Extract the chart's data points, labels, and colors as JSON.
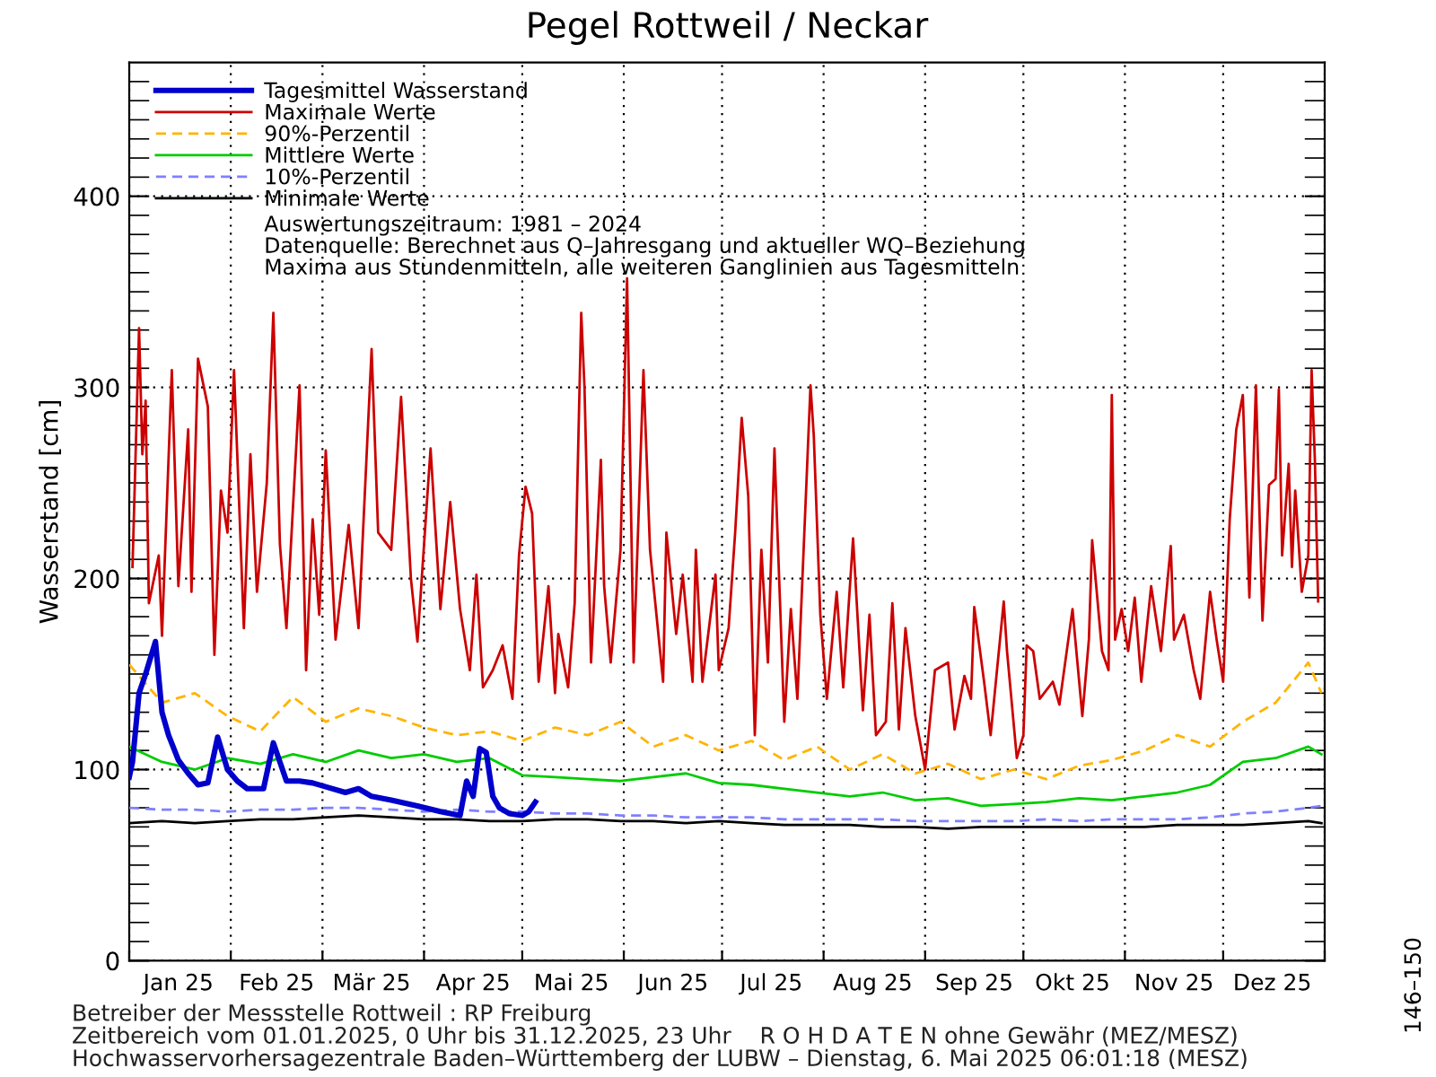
{
  "chart_data": {
    "type": "line",
    "title": "Pegel Rottweil / Neckar",
    "ylabel": "Wasserstand [cm]",
    "xlim": [
      "2025-01-01",
      "2026-01-01"
    ],
    "xticks": [
      {
        "value": "2025-01-01",
        "label": null
      },
      {
        "value": "2025-01-16",
        "label": "Jan 25"
      },
      {
        "value": "2025-02-01",
        "label": null
      },
      {
        "value": "2025-02-15",
        "label": "Feb 25"
      },
      {
        "value": "2025-03-01",
        "label": null
      },
      {
        "value": "2025-03-16",
        "label": "Mär 25"
      },
      {
        "value": "2025-04-01",
        "label": null
      },
      {
        "value": "2025-04-16",
        "label": "Apr 25"
      },
      {
        "value": "2025-05-01",
        "label": null
      },
      {
        "value": "2025-05-16",
        "label": "Mai 25"
      },
      {
        "value": "2025-06-01",
        "label": null
      },
      {
        "value": "2025-06-16",
        "label": "Jun 25"
      },
      {
        "value": "2025-07-01",
        "label": null
      },
      {
        "value": "2025-07-16",
        "label": "Jul 25"
      },
      {
        "value": "2025-08-01",
        "label": null
      },
      {
        "value": "2025-08-16",
        "label": "Aug 25"
      },
      {
        "value": "2025-09-01",
        "label": null
      },
      {
        "value": "2025-09-16",
        "label": "Sep 25"
      },
      {
        "value": "2025-10-01",
        "label": null
      },
      {
        "value": "2025-10-16",
        "label": "Okt 25"
      },
      {
        "value": "2025-11-01",
        "label": null
      },
      {
        "value": "2025-11-16",
        "label": "Nov 25"
      },
      {
        "value": "2025-12-01",
        "label": null
      },
      {
        "value": "2025-12-16",
        "label": "Dez 25"
      },
      {
        "value": "2026-01-01",
        "label": null
      }
    ],
    "ylim": [
      0,
      470
    ],
    "yticks": [
      0,
      {
        "value": 10,
        "label": null
      },
      {
        "value": 20,
        "label": null
      },
      {
        "value": 30,
        "label": null
      },
      {
        "value": 40,
        "label": null
      },
      {
        "value": 50,
        "label": null
      },
      {
        "value": 60,
        "label": null
      },
      {
        "value": 70,
        "label": null
      },
      {
        "value": 80,
        "label": null
      },
      {
        "value": 90,
        "label": null
      },
      100,
      {
        "value": 110,
        "label": null
      },
      {
        "value": 120,
        "label": null
      },
      {
        "value": 130,
        "label": null
      },
      {
        "value": 140,
        "label": null
      },
      {
        "value": 150,
        "label": null
      },
      {
        "value": 160,
        "label": null
      },
      {
        "value": 170,
        "label": null
      },
      {
        "value": 180,
        "label": null
      },
      {
        "value": 190,
        "label": null
      },
      200,
      {
        "value": 210,
        "label": null
      },
      {
        "value": 220,
        "label": null
      },
      {
        "value": 230,
        "label": null
      },
      {
        "value": 240,
        "label": null
      },
      {
        "value": 250,
        "label": null
      },
      {
        "value": 260,
        "label": null
      },
      {
        "value": 270,
        "label": null
      },
      {
        "value": 280,
        "label": null
      },
      {
        "value": 290,
        "label": null
      },
      300,
      {
        "value": 310,
        "label": null
      },
      {
        "value": 320,
        "label": null
      },
      {
        "value": 330,
        "label": null
      },
      {
        "value": 340,
        "label": null
      },
      {
        "value": 350,
        "label": null
      },
      {
        "value": 360,
        "label": null
      },
      {
        "value": 370,
        "label": null
      },
      {
        "value": 380,
        "label": null
      },
      {
        "value": 390,
        "label": null
      },
      400,
      {
        "value": 410,
        "label": null
      },
      {
        "value": 420,
        "label": null
      },
      {
        "value": 430,
        "label": null
      },
      {
        "value": 440,
        "label": null
      },
      {
        "value": 450,
        "label": null
      },
      {
        "value": 460,
        "label": null
      }
    ],
    "grid": true,
    "legend": "top left",
    "marker": "none",
    "series": [
      {
        "name": "Tagesmittel Wasserstand",
        "color": "#0000cc",
        "line_style": "solid",
        "x": [
          "2025-01-01",
          "2025-01-02",
          "2025-01-04",
          "2025-01-06",
          "2025-01-09",
          "2025-01-11",
          "2025-01-13",
          "2025-01-16",
          "2025-01-19",
          "2025-01-22",
          "2025-01-25",
          "2025-01-28",
          "2025-01-31",
          "2025-02-03",
          "2025-02-06",
          "2025-02-11",
          "2025-02-14",
          "2025-02-18",
          "2025-02-22",
          "2025-02-26",
          "2025-03-02",
          "2025-03-08",
          "2025-03-12",
          "2025-03-16",
          "2025-03-22",
          "2025-03-30",
          "2025-04-06",
          "2025-04-12",
          "2025-04-14",
          "2025-04-16",
          "2025-04-18",
          "2025-04-20",
          "2025-04-22",
          "2025-04-24",
          "2025-04-27",
          "2025-05-01",
          "2025-05-03",
          "2025-05-05"
        ],
        "values": [
          96,
          104,
          140,
          150,
          167,
          130,
          118,
          105,
          98,
          92,
          93,
          117,
          100,
          94,
          90,
          90,
          114,
          94,
          94,
          93,
          91,
          88,
          90,
          86,
          84,
          81,
          78,
          76,
          94,
          86,
          111,
          109,
          86,
          80,
          77,
          76,
          78,
          83
        ]
      },
      {
        "name": "Maximale Werte",
        "color": "#cc0000",
        "line_style": "solid",
        "x": [
          "2025-01-02",
          "2025-01-04",
          "2025-01-05",
          "2025-01-06",
          "2025-01-07",
          "2025-01-10",
          "2025-01-11",
          "2025-01-14",
          "2025-01-16",
          "2025-01-19",
          "2025-01-20",
          "2025-01-22",
          "2025-01-25",
          "2025-01-27",
          "2025-01-29",
          "2025-01-31",
          "2025-02-02",
          "2025-02-05",
          "2025-02-07",
          "2025-02-09",
          "2025-02-12",
          "2025-02-14",
          "2025-02-16",
          "2025-02-18",
          "2025-02-22",
          "2025-02-24",
          "2025-02-26",
          "2025-02-28",
          "2025-03-02",
          "2025-03-05",
          "2025-03-09",
          "2025-03-12",
          "2025-03-16",
          "2025-03-18",
          "2025-03-22",
          "2025-03-25",
          "2025-03-28",
          "2025-03-30",
          "2025-04-03",
          "2025-04-06",
          "2025-04-09",
          "2025-04-12",
          "2025-04-15",
          "2025-04-17",
          "2025-04-19",
          "2025-04-22",
          "2025-04-25",
          "2025-04-28",
          "2025-04-30",
          "2025-05-02",
          "2025-05-04",
          "2025-05-06",
          "2025-05-09",
          "2025-05-11",
          "2025-05-12",
          "2025-05-15",
          "2025-05-17",
          "2025-05-19",
          "2025-05-20",
          "2025-05-22",
          "2025-05-25",
          "2025-05-26",
          "2025-05-28",
          "2025-05-31",
          "2025-06-02",
          "2025-06-04",
          "2025-06-07",
          "2025-06-09",
          "2025-06-13",
          "2025-06-14",
          "2025-06-17",
          "2025-06-19",
          "2025-06-22",
          "2025-06-23",
          "2025-06-25",
          "2025-06-29",
          "2025-06-30",
          "2025-07-03",
          "2025-07-05",
          "2025-07-07",
          "2025-07-09",
          "2025-07-11",
          "2025-07-13",
          "2025-07-15",
          "2025-07-17",
          "2025-07-20",
          "2025-07-22",
          "2025-07-24",
          "2025-07-28",
          "2025-07-29",
          "2025-07-31",
          "2025-08-02",
          "2025-08-05",
          "2025-08-07",
          "2025-08-10",
          "2025-08-13",
          "2025-08-15",
          "2025-08-17",
          "2025-08-20",
          "2025-08-22",
          "2025-08-24",
          "2025-08-26",
          "2025-08-29",
          "2025-09-01",
          "2025-09-04",
          "2025-09-08",
          "2025-09-10",
          "2025-09-13",
          "2025-09-15",
          "2025-09-16",
          "2025-09-19",
          "2025-09-21",
          "2025-09-25",
          "2025-09-26",
          "2025-09-29",
          "2025-10-01",
          "2025-10-02",
          "2025-10-04",
          "2025-10-06",
          "2025-10-10",
          "2025-10-12",
          "2025-10-16",
          "2025-10-19",
          "2025-10-21",
          "2025-10-22",
          "2025-10-25",
          "2025-10-27",
          "2025-10-28",
          "2025-10-29",
          "2025-10-31",
          "2025-11-02",
          "2025-11-04",
          "2025-11-06",
          "2025-11-09",
          "2025-11-12",
          "2025-11-15",
          "2025-11-16",
          "2025-11-19",
          "2025-11-22",
          "2025-11-24",
          "2025-11-27",
          "2025-11-29",
          "2025-12-01",
          "2025-12-03",
          "2025-12-05",
          "2025-12-07",
          "2025-12-09",
          "2025-12-11",
          "2025-12-13",
          "2025-12-15",
          "2025-12-17",
          "2025-12-18",
          "2025-12-19",
          "2025-12-21",
          "2025-12-22",
          "2025-12-23",
          "2025-12-25",
          "2025-12-27",
          "2025-12-28",
          "2025-12-29",
          "2025-12-30"
        ],
        "values": [
          206,
          331,
          265,
          293,
          187,
          212,
          170,
          309,
          196,
          278,
          193,
          315,
          290,
          160,
          246,
          224,
          309,
          174,
          265,
          193,
          250,
          339,
          218,
          174,
          301,
          152,
          231,
          181,
          267,
          168,
          228,
          174,
          320,
          224,
          215,
          295,
          200,
          167,
          268,
          184,
          240,
          184,
          152,
          202,
          143,
          152,
          165,
          137,
          212,
          248,
          234,
          146,
          196,
          140,
          171,
          143,
          187,
          339,
          300,
          156,
          262,
          196,
          156,
          215,
          357,
          156,
          309,
          215,
          146,
          224,
          171,
          202,
          146,
          215,
          146,
          202,
          152,
          174,
          224,
          284,
          243,
          118,
          215,
          156,
          268,
          125,
          184,
          137,
          301,
          275,
          181,
          137,
          193,
          143,
          221,
          131,
          181,
          118,
          125,
          187,
          121,
          174,
          128,
          100,
          152,
          156,
          121,
          149,
          137,
          185,
          146,
          118,
          188,
          162,
          106,
          118,
          165,
          162,
          137,
          146,
          134,
          184,
          128,
          168,
          220,
          162,
          152,
          296,
          168,
          184,
          162,
          190,
          146,
          196,
          162,
          217,
          168,
          181,
          152,
          137,
          193,
          168,
          146,
          231,
          278,
          296,
          190,
          301,
          178,
          249,
          252,
          299,
          212,
          260,
          206,
          246,
          193,
          212,
          309,
          262,
          188
        ]
      },
      {
        "name": "90%-Perzentil",
        "color": "#ffb400",
        "line_style": "dashed",
        "x": [
          "2025-01-01",
          "2025-01-11",
          "2025-01-21",
          "2025-01-31",
          "2025-02-10",
          "2025-02-20",
          "2025-03-02",
          "2025-03-12",
          "2025-03-22",
          "2025-04-01",
          "2025-04-11",
          "2025-04-21",
          "2025-05-01",
          "2025-05-11",
          "2025-05-21",
          "2025-05-31",
          "2025-06-10",
          "2025-06-20",
          "2025-06-30",
          "2025-07-10",
          "2025-07-20",
          "2025-07-30",
          "2025-08-09",
          "2025-08-19",
          "2025-08-29",
          "2025-09-08",
          "2025-09-18",
          "2025-09-28",
          "2025-10-08",
          "2025-10-18",
          "2025-10-28",
          "2025-11-07",
          "2025-11-17",
          "2025-11-27",
          "2025-12-07",
          "2025-12-17",
          "2025-12-27",
          "2025-12-31"
        ],
        "values": [
          155,
          135,
          140,
          128,
          120,
          138,
          125,
          132,
          128,
          122,
          118,
          120,
          115,
          122,
          118,
          125,
          112,
          118,
          110,
          115,
          105,
          112,
          100,
          108,
          98,
          103,
          95,
          100,
          95,
          102,
          105,
          110,
          118,
          112,
          125,
          135,
          156,
          140
        ]
      },
      {
        "name": "Mittlere Werte",
        "color": "#00cc00",
        "line_style": "solid",
        "x": [
          "2025-01-01",
          "2025-01-11",
          "2025-01-21",
          "2025-01-31",
          "2025-02-10",
          "2025-02-20",
          "2025-03-02",
          "2025-03-12",
          "2025-03-22",
          "2025-04-01",
          "2025-04-11",
          "2025-04-21",
          "2025-05-01",
          "2025-05-11",
          "2025-05-21",
          "2025-05-31",
          "2025-06-10",
          "2025-06-20",
          "2025-06-30",
          "2025-07-10",
          "2025-07-20",
          "2025-07-30",
          "2025-08-09",
          "2025-08-19",
          "2025-08-29",
          "2025-09-08",
          "2025-09-18",
          "2025-09-28",
          "2025-10-08",
          "2025-10-18",
          "2025-10-28",
          "2025-11-07",
          "2025-11-17",
          "2025-11-27",
          "2025-12-07",
          "2025-12-17",
          "2025-12-27",
          "2025-12-31"
        ],
        "values": [
          112,
          104,
          100,
          106,
          103,
          108,
          104,
          110,
          106,
          108,
          104,
          106,
          97,
          96,
          95,
          94,
          96,
          98,
          93,
          92,
          90,
          88,
          86,
          88,
          84,
          85,
          81,
          82,
          83,
          85,
          84,
          86,
          88,
          92,
          104,
          106,
          112,
          108
        ]
      },
      {
        "name": "10%-Perzentil",
        "color": "#8080ff",
        "line_style": "dashed",
        "x": [
          "2025-01-01",
          "2025-01-11",
          "2025-01-21",
          "2025-01-31",
          "2025-02-10",
          "2025-02-20",
          "2025-03-02",
          "2025-03-12",
          "2025-03-22",
          "2025-04-01",
          "2025-04-11",
          "2025-04-21",
          "2025-05-01",
          "2025-05-11",
          "2025-05-21",
          "2025-05-31",
          "2025-06-10",
          "2025-06-20",
          "2025-06-30",
          "2025-07-10",
          "2025-07-20",
          "2025-07-30",
          "2025-08-09",
          "2025-08-19",
          "2025-08-29",
          "2025-09-08",
          "2025-09-18",
          "2025-09-28",
          "2025-10-08",
          "2025-10-18",
          "2025-10-28",
          "2025-11-07",
          "2025-11-17",
          "2025-11-27",
          "2025-12-07",
          "2025-12-17",
          "2025-12-27",
          "2025-12-31"
        ],
        "values": [
          80,
          79,
          79,
          78,
          79,
          79,
          80,
          80,
          79,
          78,
          79,
          78,
          78,
          77,
          77,
          76,
          76,
          75,
          75,
          75,
          74,
          74,
          74,
          74,
          73,
          73,
          73,
          73,
          74,
          73,
          74,
          74,
          74,
          75,
          77,
          78,
          80,
          81
        ]
      },
      {
        "name": "Minimale Werte",
        "color": "#000000",
        "line_style": "solid",
        "x": [
          "2025-01-01",
          "2025-01-11",
          "2025-01-21",
          "2025-01-31",
          "2025-02-10",
          "2025-02-20",
          "2025-03-02",
          "2025-03-12",
          "2025-03-22",
          "2025-04-01",
          "2025-04-11",
          "2025-04-21",
          "2025-05-01",
          "2025-05-11",
          "2025-05-21",
          "2025-05-31",
          "2025-06-10",
          "2025-06-20",
          "2025-06-30",
          "2025-07-10",
          "2025-07-20",
          "2025-07-30",
          "2025-08-09",
          "2025-08-19",
          "2025-08-29",
          "2025-09-08",
          "2025-09-18",
          "2025-09-28",
          "2025-10-08",
          "2025-10-18",
          "2025-10-28",
          "2025-11-07",
          "2025-11-17",
          "2025-11-27",
          "2025-12-07",
          "2025-12-17",
          "2025-12-27",
          "2025-12-31"
        ],
        "values": [
          72,
          73,
          72,
          73,
          74,
          74,
          75,
          76,
          75,
          74,
          74,
          73,
          73,
          74,
          74,
          73,
          73,
          72,
          73,
          72,
          71,
          71,
          71,
          70,
          70,
          69,
          70,
          70,
          70,
          70,
          70,
          70,
          71,
          71,
          71,
          72,
          73,
          72
        ]
      }
    ],
    "annotations": [
      "Auswertungszeitraum: 1981 – 2024",
      "Datenquelle: Berechnet aus Q–Jahresgang und aktueller WQ–Beziehung",
      "Maxima aus Stundenmitteln, alle weiteren Ganglinien aus Tagesmitteln",
      "Betreiber der Messstelle Rottweil : RP Freiburg",
      "Zeitbereich vom 01.01.2025, 0 Uhr bis 31.12.2025, 23 Uhr    R O H D A T E N ohne Gewähr (MEZ/MESZ)",
      "Hochwasservorhersagezentrale Baden–Württemberg der LUBW – Dienstag, 6. Mai 2025 06:01:18 (MESZ)",
      "146–150"
    ]
  }
}
